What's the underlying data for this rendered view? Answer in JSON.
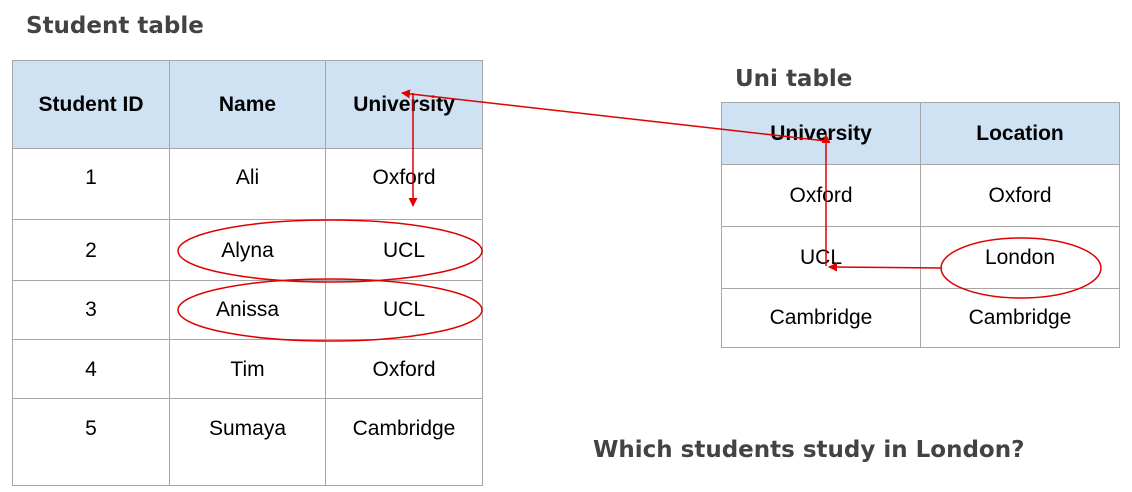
{
  "student_table": {
    "title": "Student table",
    "headers": [
      "Student ID",
      "Name",
      "University"
    ],
    "rows": [
      [
        "1",
        "Ali",
        "Oxford"
      ],
      [
        "2",
        "Alyna",
        "UCL"
      ],
      [
        "3",
        "Anissa",
        "UCL"
      ],
      [
        "4",
        "Tim",
        "Oxford"
      ],
      [
        "5",
        "Sumaya",
        "Cambridge"
      ]
    ]
  },
  "uni_table": {
    "title": "Uni table",
    "headers": [
      "University",
      "Location"
    ],
    "rows": [
      [
        "Oxford",
        "Oxford"
      ],
      [
        "UCL",
        "London"
      ],
      [
        "Cambridge",
        "Cambridge"
      ]
    ]
  },
  "question": "Which students study in London?",
  "colors": {
    "header_fill": "#cfe2f3",
    "annotation": "#e00000",
    "heading_text": "#434343",
    "grid_line": "#a6a6a6"
  }
}
